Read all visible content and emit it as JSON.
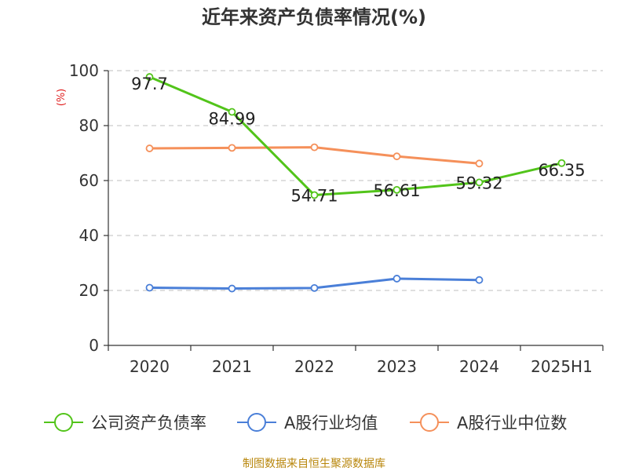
{
  "chart_data": {
    "type": "line",
    "title": "近年来资产负债率情况(%)",
    "ylabel": "(%)",
    "xlabel": "",
    "ylim": [
      0,
      100
    ],
    "yticks": [
      0,
      20,
      40,
      60,
      80,
      100
    ],
    "categories": [
      "2020",
      "2021",
      "2022",
      "2023",
      "2024",
      "2025H1"
    ],
    "grid": true,
    "legend_position": "bottom",
    "series": [
      {
        "name": "公司资产负债率",
        "color": "#52c41a",
        "values": [
          97.7,
          84.99,
          54.71,
          56.61,
          59.32,
          66.35
        ],
        "labels": [
          "97.7",
          "84.99",
          "54.71",
          "56.61",
          "59.32",
          "66.35"
        ]
      },
      {
        "name": "A股行业均值",
        "color": "#4a7fd8",
        "values": [
          21.0,
          20.7,
          20.9,
          24.3,
          23.8,
          null
        ]
      },
      {
        "name": "A股行业中位数",
        "color": "#f5905a",
        "values": [
          71.7,
          71.9,
          72.1,
          68.8,
          66.2,
          null
        ]
      }
    ],
    "source": "制图数据来自恒生聚源数据库"
  }
}
